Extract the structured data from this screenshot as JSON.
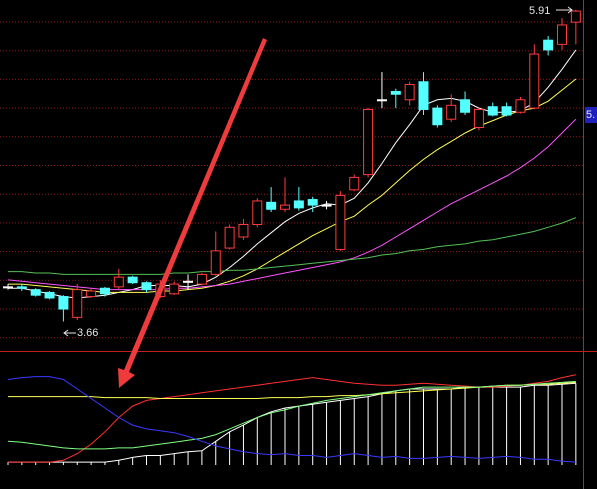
{
  "chart_data": [
    {
      "type": "candlestick",
      "ylim": [
        3.44,
        5.98
      ],
      "up_color": "#ff3c3c",
      "down_color": "#54ffff",
      "doji_color": "#ffffff",
      "open": [
        3.91,
        3.91,
        3.89,
        3.87,
        3.84,
        3.69,
        3.84,
        3.9,
        3.91,
        3.98,
        3.94,
        3.84,
        3.86,
        3.95,
        3.93,
        4.0,
        4.19,
        4.27,
        4.36,
        4.52,
        4.47,
        4.53,
        4.54,
        4.5,
        4.18,
        4.61,
        4.72,
        5.26,
        5.32,
        5.26,
        5.39,
        5.2,
        5.12,
        5.26,
        5.06,
        5.21,
        5.21,
        5.17,
        5.2,
        5.69,
        5.66,
        5.82
      ],
      "high": [
        3.93,
        3.93,
        3.9,
        3.88,
        3.85,
        3.93,
        3.9,
        3.91,
        4.04,
        3.99,
        3.95,
        3.96,
        3.95,
        4.0,
        4.01,
        4.31,
        4.36,
        4.4,
        4.55,
        4.63,
        4.7,
        4.63,
        4.56,
        4.53,
        4.6,
        4.72,
        5.2,
        5.46,
        5.34,
        5.39,
        5.46,
        5.22,
        5.3,
        5.32,
        5.2,
        5.24,
        5.24,
        5.28,
        5.66,
        5.72,
        5.85,
        5.91
      ],
      "low": [
        3.89,
        3.88,
        3.84,
        3.82,
        3.66,
        3.67,
        3.83,
        3.84,
        3.89,
        3.93,
        3.87,
        3.83,
        3.85,
        3.89,
        3.92,
        3.99,
        4.18,
        4.25,
        4.34,
        4.45,
        4.45,
        4.46,
        4.45,
        4.47,
        4.17,
        4.6,
        4.7,
        5.2,
        5.2,
        5.22,
        5.15,
        5.06,
        5.1,
        5.15,
        5.04,
        5.14,
        5.14,
        5.16,
        5.19,
        5.58,
        5.62,
        5.66
      ],
      "close": [
        3.91,
        3.9,
        3.85,
        3.83,
        3.75,
        3.89,
        3.88,
        3.86,
        3.98,
        3.94,
        3.89,
        3.93,
        3.93,
        3.95,
        4.0,
        4.17,
        4.34,
        4.36,
        4.53,
        4.47,
        4.5,
        4.48,
        4.5,
        4.5,
        4.57,
        4.7,
        5.19,
        5.26,
        5.3,
        5.37,
        5.19,
        5.08,
        5.22,
        5.17,
        5.19,
        5.15,
        5.15,
        5.26,
        5.59,
        5.62,
        5.8,
        5.9
      ],
      "series": [
        {
          "color": "#ffffff",
          "values": [
            3.9,
            3.9,
            3.88,
            3.86,
            3.84,
            3.83,
            3.84,
            3.85,
            3.87,
            3.89,
            3.92,
            3.92,
            3.92,
            3.91,
            3.93,
            3.98,
            4.05,
            4.13,
            4.22,
            4.3,
            4.38,
            4.44,
            4.48,
            4.51,
            4.5,
            4.55,
            4.66,
            4.8,
            4.95,
            5.08,
            5.22,
            5.26,
            5.27,
            5.25,
            5.2,
            5.17,
            5.17,
            5.18,
            5.24,
            5.35,
            5.48,
            5.62
          ]
        },
        {
          "color": "#ffff54",
          "values": [
            3.93,
            3.93,
            3.92,
            3.91,
            3.9,
            3.89,
            3.88,
            3.87,
            3.87,
            3.87,
            3.87,
            3.88,
            3.88,
            3.89,
            3.9,
            3.92,
            3.95,
            3.99,
            4.04,
            4.1,
            4.16,
            4.22,
            4.28,
            4.33,
            4.38,
            4.42,
            4.5,
            4.57,
            4.66,
            4.75,
            4.83,
            4.9,
            4.96,
            5.02,
            5.07,
            5.11,
            5.15,
            5.18,
            5.2,
            5.25,
            5.33,
            5.41
          ]
        },
        {
          "color": "#ff54ff",
          "values": [
            3.96,
            3.95,
            3.94,
            3.93,
            3.92,
            3.91,
            3.9,
            3.89,
            3.89,
            3.89,
            3.89,
            3.89,
            3.9,
            3.9,
            3.91,
            3.92,
            3.93,
            3.95,
            3.97,
            3.99,
            4.01,
            4.03,
            4.05,
            4.07,
            4.09,
            4.12,
            4.16,
            4.21,
            4.27,
            4.33,
            4.39,
            4.45,
            4.51,
            4.56,
            4.61,
            4.66,
            4.71,
            4.77,
            4.84,
            4.92,
            5.02,
            5.12
          ]
        },
        {
          "color": "#54c054",
          "values": [
            4.02,
            4.02,
            4.01,
            4.01,
            4.0,
            4.0,
            4.0,
            4.0,
            4.0,
            4.0,
            4.0,
            4.0,
            4.01,
            4.01,
            4.02,
            4.02,
            4.03,
            4.03,
            4.04,
            4.05,
            4.06,
            4.07,
            4.08,
            4.09,
            4.1,
            4.11,
            4.12,
            4.14,
            4.15,
            4.17,
            4.18,
            4.2,
            4.21,
            4.22,
            4.24,
            4.25,
            4.27,
            4.29,
            4.31,
            4.34,
            4.37,
            4.41
          ]
        }
      ],
      "annotations": [
        {
          "text": "5.91"
        },
        {
          "text": "3.66"
        },
        {
          "text": "5."
        }
      ]
    },
    {
      "type": "indicator",
      "ylim": [
        0,
        100
      ],
      "series": [
        {
          "style": "bar",
          "color": "#ffffff",
          "values": [
            3,
            3,
            3,
            3,
            3,
            3,
            3,
            3,
            5,
            8,
            10,
            10,
            12,
            14,
            15,
            25,
            35,
            42,
            50,
            56,
            60,
            62,
            64,
            66,
            68,
            70,
            72,
            75,
            78,
            80,
            80,
            80,
            80,
            82,
            82,
            82,
            82,
            82,
            84,
            84,
            85,
            86
          ]
        },
        {
          "style": "line",
          "color": "#ff3030",
          "values": [
            3,
            3,
            3,
            3,
            5,
            12,
            22,
            35,
            50,
            62,
            68,
            70,
            72,
            74,
            76,
            78,
            80,
            82,
            84,
            86,
            88,
            90,
            92,
            90,
            88,
            86,
            85,
            84,
            84,
            85,
            86,
            85,
            84,
            83,
            82,
            82,
            83,
            84,
            86,
            88,
            92,
            95
          ]
        },
        {
          "style": "line",
          "color": "#ffff54",
          "values": [
            72,
            72,
            72,
            72,
            72,
            72,
            72,
            71,
            71,
            71,
            71,
            70,
            70,
            70,
            70,
            70,
            70,
            70,
            70,
            71,
            71,
            71,
            72,
            72,
            73,
            73,
            74,
            75,
            76,
            77,
            78,
            79,
            80,
            81,
            82,
            83,
            84,
            84,
            85,
            85,
            86,
            87
          ]
        },
        {
          "style": "line",
          "color": "#80ff80",
          "values": [
            25,
            24,
            22,
            20,
            18,
            17,
            17,
            17,
            18,
            18,
            20,
            22,
            24,
            26,
            28,
            32,
            38,
            44,
            50,
            55,
            58,
            62,
            65,
            68,
            70,
            72,
            74,
            76,
            78,
            80,
            82,
            82,
            82,
            82,
            82,
            83,
            84,
            84,
            85,
            86,
            87,
            88
          ]
        },
        {
          "style": "line",
          "color": "#3a3aff",
          "values": [
            90,
            92,
            93,
            93,
            90,
            80,
            70,
            60,
            50,
            42,
            38,
            36,
            34,
            30,
            25,
            20,
            17,
            14,
            12,
            11,
            12,
            10,
            10,
            8,
            10,
            12,
            10,
            8,
            9,
            7,
            7,
            8,
            9,
            8,
            7,
            8,
            9,
            8,
            6,
            6,
            4,
            3
          ]
        }
      ]
    }
  ]
}
